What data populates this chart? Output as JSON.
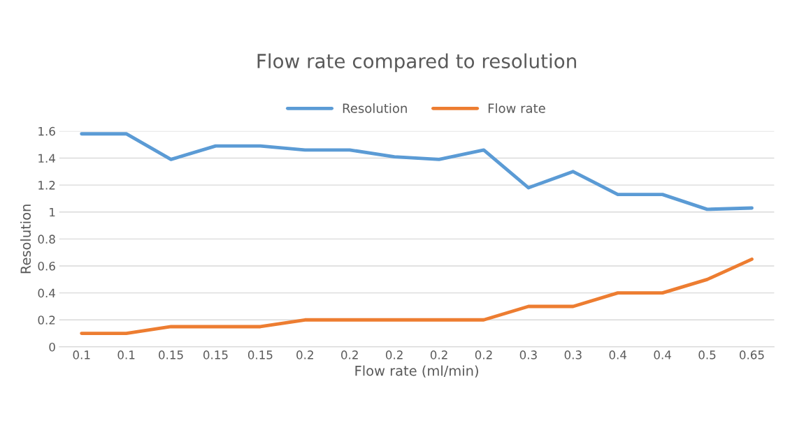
{
  "chart_data": {
    "type": "line",
    "title": "Flow rate compared to resolution",
    "xlabel": "Flow rate (ml/min)",
    "ylabel": "Resolution",
    "categories": [
      "0.1",
      "0.1",
      "0.15",
      "0.15",
      "0.15",
      "0.2",
      "0.2",
      "0.2",
      "0.2",
      "0.2",
      "0.3",
      "0.3",
      "0.4",
      "0.4",
      "0.5",
      "0.65"
    ],
    "series": [
      {
        "name": "Resolution",
        "color": "#5b9bd5",
        "values": [
          1.58,
          1.58,
          1.39,
          1.49,
          1.49,
          1.46,
          1.46,
          1.41,
          1.39,
          1.46,
          1.18,
          1.3,
          1.13,
          1.13,
          1.02,
          1.03
        ]
      },
      {
        "name": "Flow rate",
        "color": "#ed7d31",
        "values": [
          0.1,
          0.1,
          0.15,
          0.15,
          0.15,
          0.2,
          0.2,
          0.2,
          0.2,
          0.2,
          0.3,
          0.3,
          0.4,
          0.4,
          0.5,
          0.65
        ]
      }
    ],
    "ylim": [
      0,
      1.6
    ],
    "yticks": [
      0,
      0.2,
      0.4,
      0.6,
      0.8,
      1,
      1.2,
      1.4,
      1.6
    ],
    "grid": "y",
    "legend": "top",
    "marker": "none",
    "line_style": "solid"
  }
}
